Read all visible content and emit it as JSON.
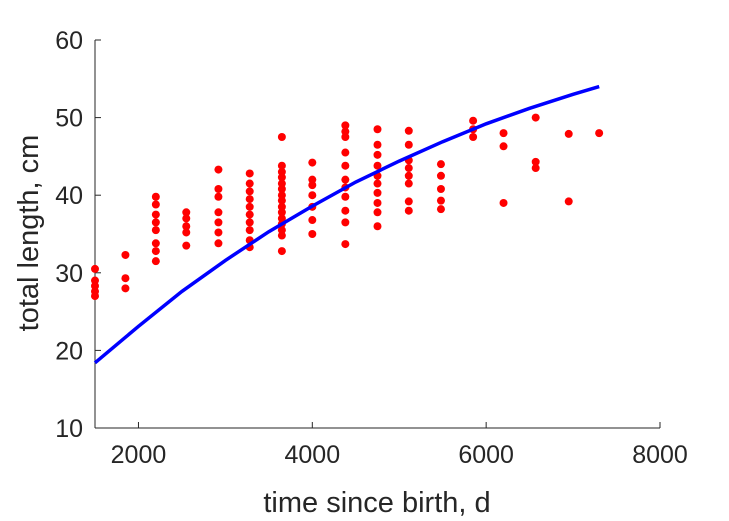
{
  "chart_data": {
    "type": "scatter",
    "xlabel": "time since birth, d",
    "ylabel": "total length, cm",
    "xlim": [
      1500,
      8000
    ],
    "ylim": [
      10,
      60
    ],
    "xticks": [
      2000,
      4000,
      6000,
      8000
    ],
    "yticks": [
      10,
      20,
      30,
      40,
      50,
      60
    ],
    "xtick_labels": [
      "2000",
      "4000",
      "6000",
      "8000"
    ],
    "ytick_labels": [
      "10",
      "20",
      "30",
      "40",
      "50",
      "60"
    ],
    "grid": false,
    "box": false,
    "series": [
      {
        "kind": "scatter",
        "color": "#ff0000",
        "points": [
          [
            1500,
            27.0
          ],
          [
            1500,
            27.6
          ],
          [
            1500,
            28.3
          ],
          [
            1500,
            29.0
          ],
          [
            1500,
            30.5
          ],
          [
            1850,
            28.0
          ],
          [
            1850,
            29.3
          ],
          [
            1850,
            32.3
          ],
          [
            2200,
            31.5
          ],
          [
            2200,
            32.8
          ],
          [
            2200,
            33.8
          ],
          [
            2200,
            35.5
          ],
          [
            2200,
            36.5
          ],
          [
            2200,
            37.5
          ],
          [
            2200,
            38.8
          ],
          [
            2200,
            39.8
          ],
          [
            2550,
            33.5
          ],
          [
            2550,
            35.2
          ],
          [
            2550,
            36.0
          ],
          [
            2550,
            37.0
          ],
          [
            2550,
            37.8
          ],
          [
            2920,
            33.8
          ],
          [
            2920,
            35.2
          ],
          [
            2920,
            36.5
          ],
          [
            2920,
            37.8
          ],
          [
            2920,
            39.8
          ],
          [
            2920,
            40.8
          ],
          [
            2920,
            43.3
          ],
          [
            3280,
            33.3
          ],
          [
            3280,
            34.2
          ],
          [
            3280,
            35.5
          ],
          [
            3280,
            36.5
          ],
          [
            3280,
            37.5
          ],
          [
            3280,
            38.5
          ],
          [
            3280,
            39.5
          ],
          [
            3280,
            40.5
          ],
          [
            3280,
            41.5
          ],
          [
            3280,
            42.8
          ],
          [
            3650,
            32.8
          ],
          [
            3650,
            34.8
          ],
          [
            3650,
            35.5
          ],
          [
            3650,
            36.3
          ],
          [
            3650,
            37.0
          ],
          [
            3650,
            37.8
          ],
          [
            3650,
            38.5
          ],
          [
            3650,
            39.3
          ],
          [
            3650,
            40.0
          ],
          [
            3650,
            40.8
          ],
          [
            3650,
            41.5
          ],
          [
            3650,
            42.3
          ],
          [
            3650,
            43.0
          ],
          [
            3650,
            43.8
          ],
          [
            3650,
            47.5
          ],
          [
            4000,
            35.0
          ],
          [
            4000,
            36.8
          ],
          [
            4000,
            38.5
          ],
          [
            4000,
            40.0
          ],
          [
            4000,
            41.3
          ],
          [
            4000,
            42.0
          ],
          [
            4000,
            44.2
          ],
          [
            4380,
            33.7
          ],
          [
            4380,
            36.5
          ],
          [
            4380,
            38.0
          ],
          [
            4380,
            39.8
          ],
          [
            4380,
            41.0
          ],
          [
            4380,
            42.0
          ],
          [
            4380,
            43.8
          ],
          [
            4380,
            45.5
          ],
          [
            4380,
            47.5
          ],
          [
            4380,
            48.2
          ],
          [
            4380,
            49.0
          ],
          [
            4750,
            36.0
          ],
          [
            4750,
            37.8
          ],
          [
            4750,
            39.0
          ],
          [
            4750,
            40.3
          ],
          [
            4750,
            41.5
          ],
          [
            4750,
            42.5
          ],
          [
            4750,
            43.8
          ],
          [
            4750,
            45.2
          ],
          [
            4750,
            46.5
          ],
          [
            4750,
            48.5
          ],
          [
            5110,
            38.0
          ],
          [
            5110,
            39.2
          ],
          [
            5110,
            41.5
          ],
          [
            5110,
            42.5
          ],
          [
            5110,
            43.5
          ],
          [
            5110,
            44.5
          ],
          [
            5110,
            46.5
          ],
          [
            5110,
            48.3
          ],
          [
            5480,
            38.2
          ],
          [
            5480,
            39.3
          ],
          [
            5480,
            40.8
          ],
          [
            5480,
            42.5
          ],
          [
            5480,
            44.0
          ],
          [
            5850,
            47.5
          ],
          [
            5850,
            48.5
          ],
          [
            5850,
            49.6
          ],
          [
            6200,
            39.0
          ],
          [
            6200,
            46.3
          ],
          [
            6200,
            48.0
          ],
          [
            6570,
            43.5
          ],
          [
            6570,
            44.3
          ],
          [
            6570,
            50.0
          ],
          [
            6950,
            39.2
          ],
          [
            6950,
            47.9
          ],
          [
            7300,
            48.0
          ]
        ]
      },
      {
        "kind": "line",
        "color": "#0000ff",
        "points": [
          [
            1500,
            18.4
          ],
          [
            2000,
            23.1
          ],
          [
            2500,
            27.6
          ],
          [
            3000,
            31.6
          ],
          [
            3500,
            35.3
          ],
          [
            4000,
            38.6
          ],
          [
            4500,
            41.7
          ],
          [
            5000,
            44.4
          ],
          [
            5500,
            46.9
          ],
          [
            6000,
            49.2
          ],
          [
            6500,
            51.2
          ],
          [
            7000,
            53.0
          ],
          [
            7300,
            54.0
          ]
        ]
      }
    ]
  }
}
